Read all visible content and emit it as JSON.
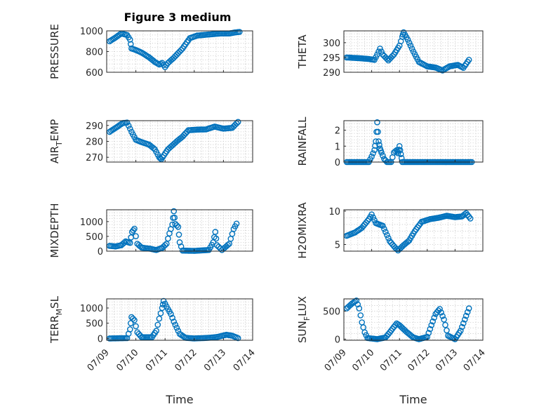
{
  "figure": {
    "title": "Figure 3 medium",
    "marker_color": "#0072BD"
  },
  "chart_data": [
    {
      "type": "scatter",
      "ylabel_main": "PRESSURE",
      "ylabel_sub": "",
      "ylabel_tail": "",
      "xlim": [
        0,
        5
      ],
      "ylim": [
        600,
        1000
      ],
      "yticks": [
        600,
        800,
        1000
      ],
      "xtick_labels": [],
      "xlabel": "",
      "title": "Figure 3 medium",
      "keys": [
        [
          0.1,
          900
        ],
        [
          0.3,
          935
        ],
        [
          0.5,
          975
        ],
        [
          0.7,
          960
        ],
        [
          0.8,
          915
        ],
        [
          0.85,
          830
        ],
        [
          1.0,
          815
        ],
        [
          1.2,
          790
        ],
        [
          1.45,
          745
        ],
        [
          1.65,
          700
        ],
        [
          1.8,
          675
        ],
        [
          1.9,
          690
        ],
        [
          2.0,
          650
        ],
        [
          2.1,
          690
        ],
        [
          2.3,
          740
        ],
        [
          2.6,
          830
        ],
        [
          2.85,
          930
        ],
        [
          3.1,
          955
        ],
        [
          3.5,
          965
        ],
        [
          3.9,
          975
        ],
        [
          4.2,
          975
        ],
        [
          4.4,
          985
        ],
        [
          4.55,
          990
        ]
      ]
    },
    {
      "type": "scatter",
      "ylabel_main": "THETA",
      "ylabel_sub": "",
      "ylabel_tail": "",
      "xlim": [
        0,
        5
      ],
      "ylim": [
        290,
        304
      ],
      "yticks": [
        290,
        295,
        300
      ],
      "xtick_labels": [],
      "xlabel": "",
      "keys": [
        [
          0.1,
          295
        ],
        [
          0.5,
          294.8
        ],
        [
          0.9,
          294.5
        ],
        [
          1.1,
          294.2
        ],
        [
          1.2,
          296
        ],
        [
          1.3,
          298
        ],
        [
          1.4,
          296
        ],
        [
          1.6,
          294
        ],
        [
          1.8,
          296
        ],
        [
          2.0,
          299
        ],
        [
          2.1,
          302
        ],
        [
          2.15,
          303.5
        ],
        [
          2.3,
          301
        ],
        [
          2.5,
          297
        ],
        [
          2.7,
          293.5
        ],
        [
          3.0,
          292
        ],
        [
          3.3,
          291.6
        ],
        [
          3.55,
          290.6
        ],
        [
          3.8,
          292
        ],
        [
          4.1,
          292.5
        ],
        [
          4.3,
          291.5
        ],
        [
          4.5,
          294.2
        ]
      ]
    },
    {
      "type": "scatter",
      "ylabel_main": "AIR",
      "ylabel_sub": "T",
      "ylabel_tail": "EMP",
      "xlim": [
        0,
        5
      ],
      "ylim": [
        267,
        293
      ],
      "yticks": [
        270,
        280,
        290
      ],
      "xtick_labels": [],
      "xlabel": "",
      "keys": [
        [
          0.1,
          286
        ],
        [
          0.35,
          289
        ],
        [
          0.55,
          291.5
        ],
        [
          0.7,
          291.8
        ],
        [
          0.85,
          286
        ],
        [
          1.0,
          281
        ],
        [
          1.2,
          279.5
        ],
        [
          1.45,
          278
        ],
        [
          1.65,
          275
        ],
        [
          1.8,
          270
        ],
        [
          1.87,
          268.8
        ],
        [
          2.1,
          275
        ],
        [
          2.4,
          280
        ],
        [
          2.6,
          283
        ],
        [
          2.8,
          287
        ],
        [
          3.1,
          287.4
        ],
        [
          3.4,
          287.5
        ],
        [
          3.7,
          289.3
        ],
        [
          4.0,
          288
        ],
        [
          4.3,
          288.5
        ],
        [
          4.5,
          292.2
        ]
      ]
    },
    {
      "type": "scatter",
      "ylabel_main": "RAINFALL",
      "ylabel_sub": "",
      "ylabel_tail": "",
      "xlim": [
        0,
        5
      ],
      "ylim": [
        0,
        2.6
      ],
      "yticks": [
        0,
        1,
        2
      ],
      "xtick_labels": [],
      "xlabel": "",
      "keys": [
        [
          0.1,
          0
        ],
        [
          0.9,
          0
        ],
        [
          1.0,
          0.35
        ],
        [
          1.1,
          0.75
        ],
        [
          1.15,
          1.3
        ],
        [
          1.2,
          2.5
        ],
        [
          1.25,
          1.3
        ],
        [
          1.3,
          0.85
        ],
        [
          1.35,
          0.6
        ],
        [
          1.45,
          0.2
        ],
        [
          1.55,
          0
        ],
        [
          1.7,
          0
        ],
        [
          1.8,
          0.6
        ],
        [
          1.9,
          0.75
        ],
        [
          1.95,
          0.55
        ],
        [
          2.0,
          1.0
        ],
        [
          2.05,
          0.5
        ],
        [
          2.1,
          0
        ],
        [
          3.0,
          0
        ],
        [
          4.6,
          0
        ]
      ]
    },
    {
      "type": "scatter",
      "ylabel_main": "MIXDEPTH",
      "ylabel_sub": "",
      "ylabel_tail": "",
      "xlim": [
        0,
        5
      ],
      "ylim": [
        0,
        1400
      ],
      "yticks": [
        0,
        500,
        1000
      ],
      "xtick_labels": [],
      "xlabel": "",
      "keys": [
        [
          0.1,
          180
        ],
        [
          0.3,
          160
        ],
        [
          0.5,
          200
        ],
        [
          0.65,
          330
        ],
        [
          0.8,
          280
        ],
        [
          0.87,
          650
        ],
        [
          0.95,
          760
        ],
        [
          1.05,
          250
        ],
        [
          1.2,
          120
        ],
        [
          1.5,
          80
        ],
        [
          1.7,
          40
        ],
        [
          1.9,
          110
        ],
        [
          2.05,
          250
        ],
        [
          2.15,
          600
        ],
        [
          2.25,
          900
        ],
        [
          2.3,
          1350
        ],
        [
          2.35,
          920
        ],
        [
          2.45,
          820
        ],
        [
          2.5,
          300
        ],
        [
          2.6,
          20
        ],
        [
          3.0,
          10
        ],
        [
          3.5,
          40
        ],
        [
          3.65,
          300
        ],
        [
          3.72,
          650
        ],
        [
          3.78,
          200
        ],
        [
          3.95,
          40
        ],
        [
          4.2,
          250
        ],
        [
          4.35,
          750
        ],
        [
          4.45,
          930
        ]
      ]
    },
    {
      "type": "scatter",
      "ylabel_main": "H2OMIXRA",
      "ylabel_sub": "",
      "ylabel_tail": "",
      "xlim": [
        0,
        5
      ],
      "ylim": [
        4,
        10.2
      ],
      "yticks": [
        5,
        10
      ],
      "xtick_labels": [],
      "xlabel": "",
      "keys": [
        [
          0.1,
          6.3
        ],
        [
          0.4,
          6.8
        ],
        [
          0.65,
          7.5
        ],
        [
          0.9,
          8.8
        ],
        [
          1.0,
          9.5
        ],
        [
          1.15,
          8.2
        ],
        [
          1.4,
          7.8
        ],
        [
          1.65,
          5.5
        ],
        [
          1.85,
          4.5
        ],
        [
          1.95,
          4.1
        ],
        [
          2.15,
          4.9
        ],
        [
          2.35,
          5.6
        ],
        [
          2.55,
          7.0
        ],
        [
          2.8,
          8.4
        ],
        [
          3.1,
          8.8
        ],
        [
          3.4,
          9.0
        ],
        [
          3.7,
          9.3
        ],
        [
          4.0,
          9.1
        ],
        [
          4.25,
          9.2
        ],
        [
          4.4,
          9.7
        ],
        [
          4.55,
          8.9
        ]
      ]
    },
    {
      "type": "scatter",
      "ylabel_main": "TERR",
      "ylabel_sub": "M",
      "ylabel_tail": "SL",
      "xlim": [
        0,
        5
      ],
      "ylim": [
        -60,
        1300
      ],
      "yticks": [
        0,
        500,
        1000
      ],
      "xtick_labels": [
        "07/09",
        "07/10",
        "07/11",
        "07/12",
        "07/13",
        "07/14"
      ],
      "xlabel": "Time",
      "keys": [
        [
          0.1,
          0
        ],
        [
          0.7,
          10
        ],
        [
          0.8,
          300
        ],
        [
          0.85,
          700
        ],
        [
          0.95,
          600
        ],
        [
          1.05,
          200
        ],
        [
          1.2,
          40
        ],
        [
          1.55,
          40
        ],
        [
          1.7,
          250
        ],
        [
          1.8,
          650
        ],
        [
          1.9,
          1000
        ],
        [
          1.95,
          1230
        ],
        [
          2.05,
          1050
        ],
        [
          2.2,
          800
        ],
        [
          2.3,
          550
        ],
        [
          2.5,
          150
        ],
        [
          2.7,
          20
        ],
        [
          3.0,
          0
        ],
        [
          3.5,
          20
        ],
        [
          3.8,
          50
        ],
        [
          4.1,
          120
        ],
        [
          4.3,
          90
        ],
        [
          4.5,
          10
        ]
      ]
    },
    {
      "type": "scatter",
      "ylabel_main": "SUN",
      "ylabel_sub": "F",
      "ylabel_tail": "LUX",
      "xlim": [
        0,
        5
      ],
      "ylim": [
        -20,
        720
      ],
      "yticks": [
        0,
        500
      ],
      "xtick_labels": [
        "07/09",
        "07/10",
        "07/11",
        "07/12",
        "07/13",
        "07/14"
      ],
      "xlabel": "Time",
      "keys": [
        [
          0.1,
          550
        ],
        [
          0.3,
          640
        ],
        [
          0.45,
          690
        ],
        [
          0.55,
          550
        ],
        [
          0.65,
          300
        ],
        [
          0.75,
          120
        ],
        [
          0.85,
          20
        ],
        [
          1.2,
          0
        ],
        [
          1.5,
          30
        ],
        [
          1.65,
          120
        ],
        [
          1.8,
          220
        ],
        [
          1.9,
          280
        ],
        [
          2.0,
          250
        ],
        [
          2.25,
          130
        ],
        [
          2.5,
          30
        ],
        [
          2.7,
          0
        ],
        [
          3.0,
          40
        ],
        [
          3.15,
          250
        ],
        [
          3.3,
          450
        ],
        [
          3.45,
          540
        ],
        [
          3.6,
          350
        ],
        [
          3.75,
          60
        ],
        [
          4.0,
          0
        ],
        [
          4.2,
          150
        ],
        [
          4.35,
          350
        ],
        [
          4.5,
          550
        ]
      ]
    }
  ]
}
